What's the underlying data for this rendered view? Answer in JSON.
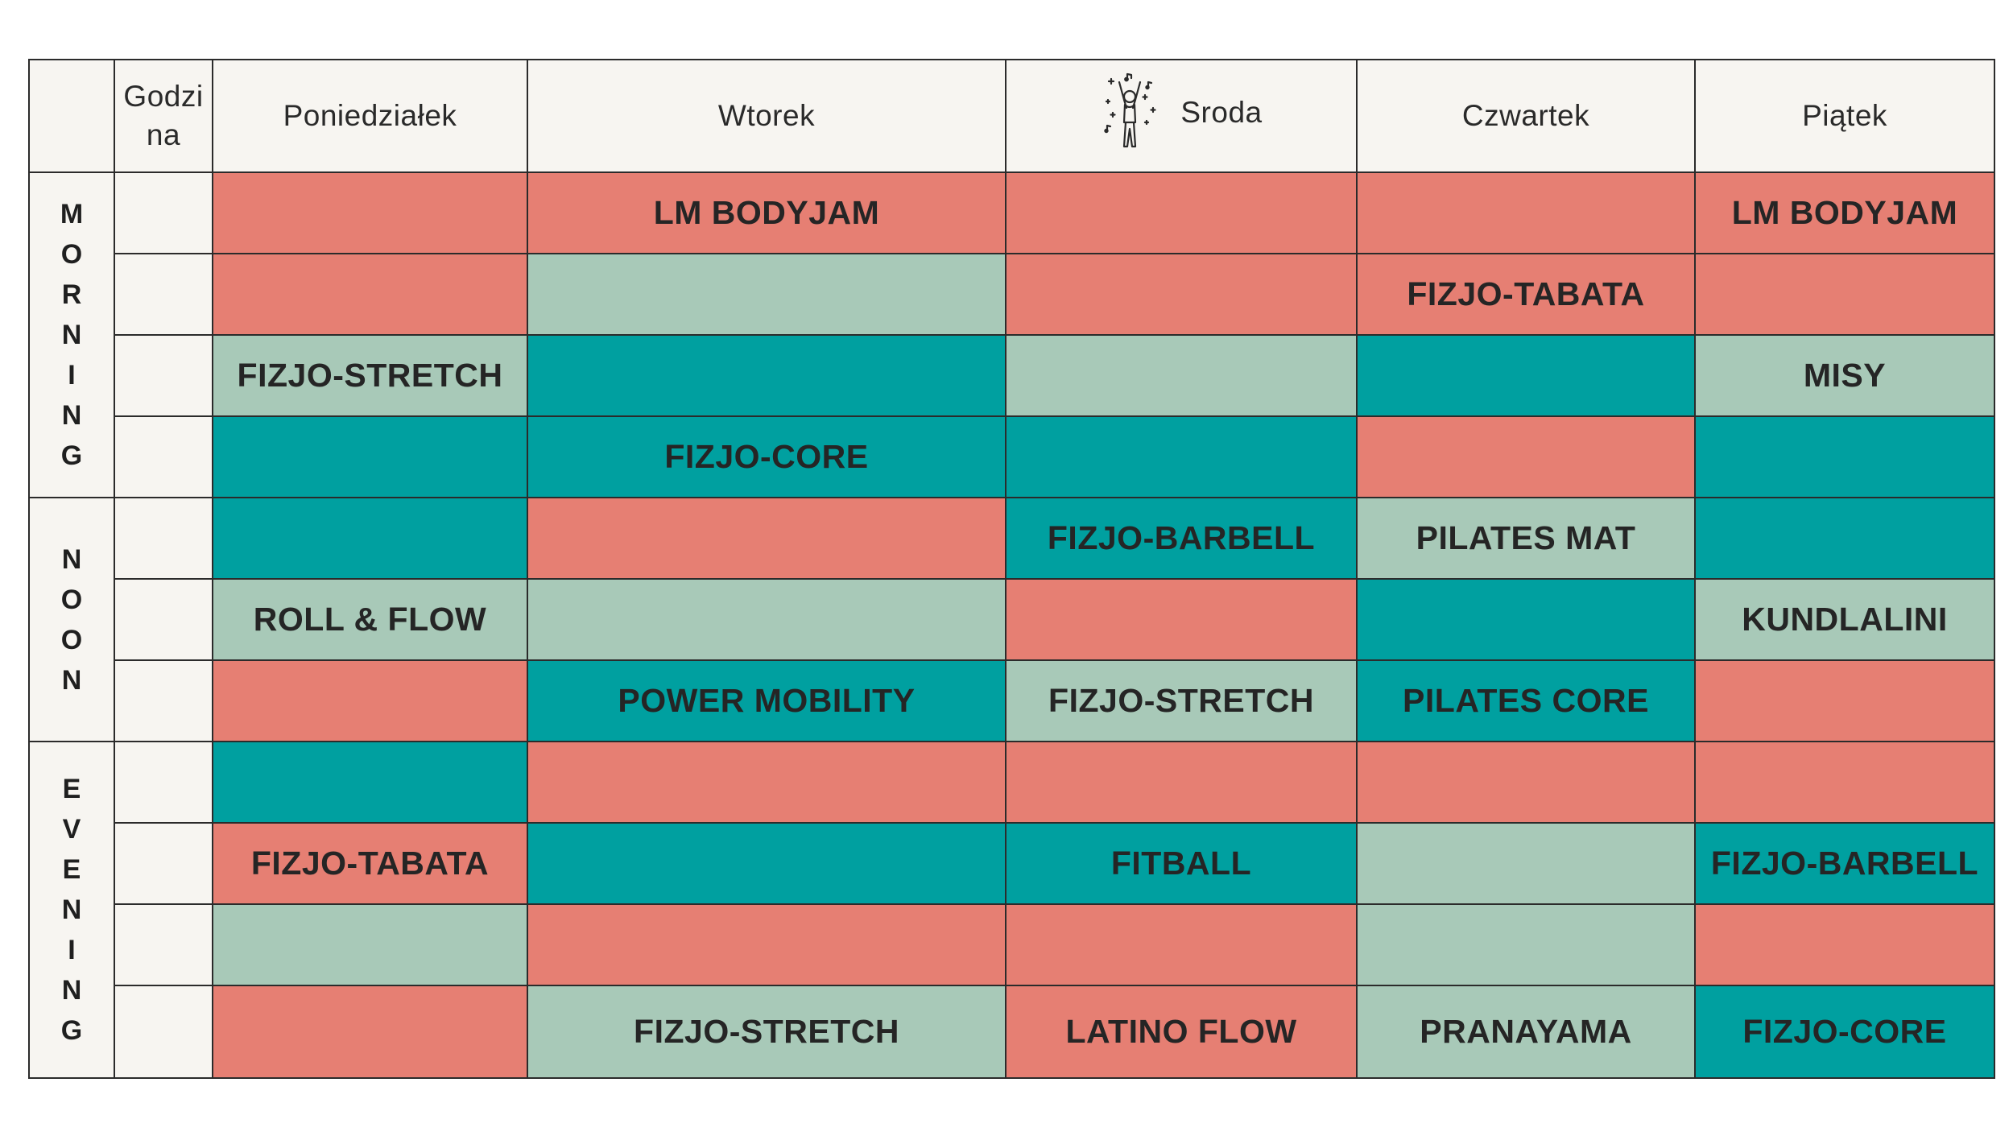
{
  "colors": {
    "red": "#e67f73",
    "sage": "#a8c9b8",
    "teal": "#00a0a0",
    "header_bg": "#f7f5f1",
    "border": "#2b2b2b"
  },
  "header": {
    "hour": "Godzi\nna",
    "days": [
      "Poniedziałek",
      "Wtorek",
      "Sroda",
      "Czwartek",
      "Piątek"
    ],
    "sroda_icon": "dancing-person-icon"
  },
  "periods": [
    {
      "label": "M\nO\nR\nN\nI\nN\nG"
    },
    {
      "label": "N\nO\nO\nN"
    },
    {
      "label": "E\nV\nE\nN\nI\nN\nG"
    }
  ],
  "rows": [
    {
      "cells": [
        {
          "text": "",
          "color": "red"
        },
        {
          "text": "LM BODYJAM",
          "color": "red"
        },
        {
          "text": "",
          "color": "red"
        },
        {
          "text": "",
          "color": "red"
        },
        {
          "text": "LM BODYJAM",
          "color": "red"
        }
      ]
    },
    {
      "cells": [
        {
          "text": "",
          "color": "red"
        },
        {
          "text": "",
          "color": "sage"
        },
        {
          "text": "",
          "color": "red"
        },
        {
          "text": "FIZJO-TABATA",
          "color": "red"
        },
        {
          "text": "",
          "color": "red"
        }
      ]
    },
    {
      "cells": [
        {
          "text": "FIZJO-STRETCH",
          "color": "sage"
        },
        {
          "text": "",
          "color": "teal"
        },
        {
          "text": "",
          "color": "sage"
        },
        {
          "text": "",
          "color": "teal"
        },
        {
          "text": "MISY",
          "color": "sage"
        }
      ]
    },
    {
      "cells": [
        {
          "text": "",
          "color": "teal"
        },
        {
          "text": "FIZJO-CORE",
          "color": "teal"
        },
        {
          "text": "",
          "color": "teal"
        },
        {
          "text": "",
          "color": "red"
        },
        {
          "text": "",
          "color": "teal"
        }
      ]
    },
    {
      "cells": [
        {
          "text": "",
          "color": "teal"
        },
        {
          "text": "",
          "color": "red"
        },
        {
          "text": "FIZJO-BARBELL",
          "color": "teal"
        },
        {
          "text": "PILATES MAT",
          "color": "sage"
        },
        {
          "text": "",
          "color": "teal"
        }
      ]
    },
    {
      "cells": [
        {
          "text": "ROLL & FLOW",
          "color": "sage"
        },
        {
          "text": "",
          "color": "sage"
        },
        {
          "text": "",
          "color": "red"
        },
        {
          "text": "",
          "color": "teal"
        },
        {
          "text": "KUNDLALINI",
          "color": "sage"
        }
      ]
    },
    {
      "cells": [
        {
          "text": "",
          "color": "red"
        },
        {
          "text": "POWER MOBILITY",
          "color": "teal"
        },
        {
          "text": "FIZJO-STRETCH",
          "color": "sage"
        },
        {
          "text": "PILATES CORE",
          "color": "teal"
        },
        {
          "text": "",
          "color": "red"
        }
      ]
    },
    {
      "cells": [
        {
          "text": "",
          "color": "teal"
        },
        {
          "text": "",
          "color": "red"
        },
        {
          "text": "",
          "color": "red"
        },
        {
          "text": "",
          "color": "red"
        },
        {
          "text": "",
          "color": "red"
        }
      ]
    },
    {
      "cells": [
        {
          "text": "FIZJO-TABATA",
          "color": "red"
        },
        {
          "text": "",
          "color": "teal"
        },
        {
          "text": "FITBALL",
          "color": "teal"
        },
        {
          "text": "",
          "color": "sage"
        },
        {
          "text": "FIZJO-BARBELL",
          "color": "teal"
        }
      ]
    },
    {
      "cells": [
        {
          "text": "",
          "color": "sage"
        },
        {
          "text": "",
          "color": "red"
        },
        {
          "text": "",
          "color": "red"
        },
        {
          "text": "",
          "color": "sage"
        },
        {
          "text": "",
          "color": "red"
        }
      ]
    },
    {
      "cells": [
        {
          "text": "",
          "color": "red"
        },
        {
          "text": "FIZJO-STRETCH",
          "color": "sage"
        },
        {
          "text": "LATINO FLOW",
          "color": "red"
        },
        {
          "text": "PRANAYAMA",
          "color": "sage"
        },
        {
          "text": "FIZJO-CORE",
          "color": "teal"
        }
      ]
    }
  ]
}
